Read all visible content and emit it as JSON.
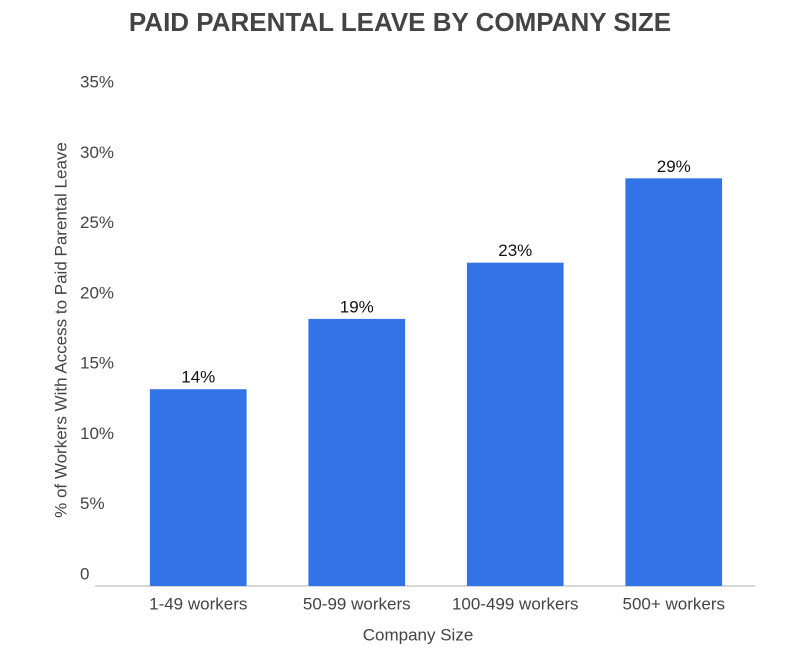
{
  "chart_data": {
    "type": "bar",
    "title": "PAID PARENTAL LEAVE BY COMPANY SIZE",
    "xlabel": "Company Size",
    "ylabel": "% of Workers With Access to Paid Parental Leave",
    "categories": [
      "1-49 workers",
      "50-99 workers",
      "100-499 workers",
      "500+ workers"
    ],
    "values": [
      14,
      19,
      23,
      29
    ],
    "value_labels": [
      "14%",
      "19%",
      "23%",
      "29%"
    ],
    "color": "#3274e8",
    "ylim": [
      0,
      35
    ],
    "yticks": [
      0,
      {
        "value": 5,
        "label": "5%"
      },
      {
        "value": 10,
        "label": "10%"
      },
      {
        "value": 15,
        "label": "15%"
      },
      {
        "value": 20,
        "label": "20%"
      },
      {
        "value": 25,
        "label": "25%"
      },
      {
        "value": 30,
        "label": "30%"
      },
      {
        "value": 35,
        "label": "35%"
      }
    ],
    "grid": false
  }
}
